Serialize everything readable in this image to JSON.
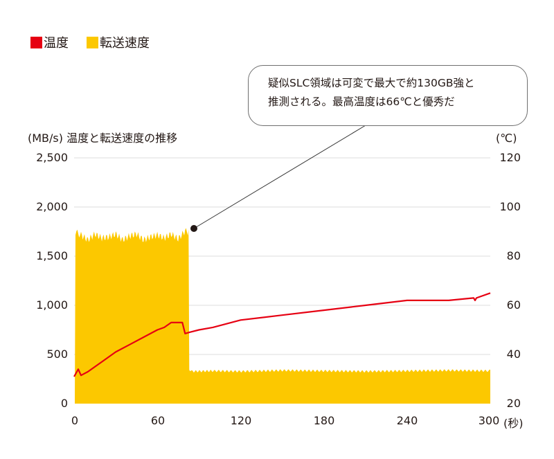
{
  "legend": {
    "items": [
      {
        "label": "温度",
        "color": "#e60012"
      },
      {
        "label": "転送速度",
        "color": "#fcc800"
      }
    ]
  },
  "callout": {
    "line1": "疑似SLC領域は可変で最大で約130GB強と",
    "line2": "推測される。最高温度は66℃と優秀だ"
  },
  "axes": {
    "left_title": "(MB/s) 温度と転送速度の推移",
    "right_title": "(℃)",
    "x_unit": "(秒)"
  },
  "chart_data": {
    "type": "area+line",
    "title": "温度と転送速度の推移",
    "xlabel": "(秒)",
    "ylabel_left": "(MB/s)",
    "ylabel_right": "(℃)",
    "x_ticks": [
      "0",
      "60",
      "120",
      "180",
      "240",
      "300"
    ],
    "y_left_ticks": [
      "0",
      "500",
      "1,000",
      "1,500",
      "2,000",
      "2,500"
    ],
    "y_right_ticks": [
      "20",
      "40",
      "60",
      "80",
      "100",
      "120"
    ],
    "xlim": [
      0,
      300
    ],
    "ylim_left": [
      0,
      2500
    ],
    "ylim_right": [
      20,
      120
    ],
    "grid": true,
    "legend_position": "top-left",
    "series": [
      {
        "name": "転送速度",
        "axis": "left",
        "type": "area",
        "color": "#fcc800",
        "x": [
          0,
          1,
          5,
          10,
          15,
          20,
          25,
          30,
          35,
          40,
          45,
          50,
          55,
          60,
          65,
          70,
          75,
          80,
          82,
          83,
          85,
          100,
          120,
          150,
          180,
          210,
          240,
          270,
          300
        ],
        "values": [
          0,
          1780,
          1750,
          1700,
          1760,
          1720,
          1730,
          1760,
          1700,
          1740,
          1760,
          1700,
          1730,
          1750,
          1720,
          1760,
          1710,
          1790,
          1780,
          360,
          340,
          345,
          340,
          350,
          345,
          340,
          345,
          350,
          345
        ]
      },
      {
        "name": "温度",
        "axis": "right",
        "type": "line",
        "color": "#e60012",
        "x": [
          0,
          3,
          5,
          10,
          20,
          30,
          40,
          50,
          60,
          65,
          70,
          75,
          78,
          80,
          83,
          90,
          100,
          120,
          150,
          180,
          210,
          240,
          270,
          288,
          289,
          290,
          300
        ],
        "values": [
          31,
          34,
          31.5,
          33,
          37,
          41,
          44,
          47,
          50,
          51,
          53,
          53,
          53,
          48.5,
          49,
          50,
          51,
          54,
          56,
          58,
          60,
          62,
          62,
          63,
          62,
          63,
          65
        ]
      }
    ],
    "annotation": {
      "x": 83,
      "y_left": 1780,
      "text": "疑似SLC領域は可変で最大で約130GB強と推測される。最高温度は66℃と優秀だ"
    }
  }
}
